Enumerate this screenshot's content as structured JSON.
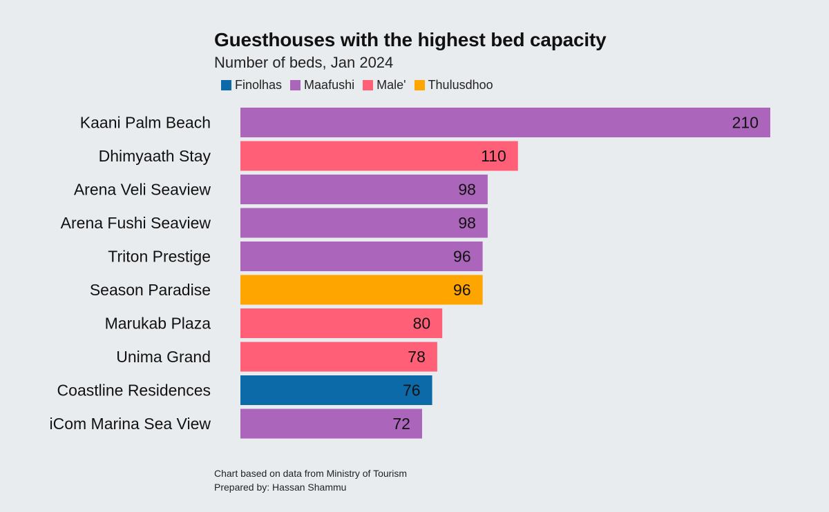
{
  "chart_data": {
    "type": "bar",
    "orientation": "horizontal",
    "title": "Guesthouses with the highest bed capacity",
    "subtitle": "Number of beds, Jan 2024",
    "xlabel": "",
    "ylabel": "",
    "xlim": [
      0,
      210
    ],
    "grid": false,
    "legend_position": "top-left",
    "legend": [
      {
        "name": "Finolhas",
        "color": "#0d6aa8"
      },
      {
        "name": "Maafushi",
        "color": "#ab65ba"
      },
      {
        "name": "Male'",
        "color": "#ff6078"
      },
      {
        "name": "Thulusdhoo",
        "color": "#ffa500"
      }
    ],
    "categories": [
      "Kaani Palm Beach",
      "Dhimyaath Stay",
      "Arena Veli Seaview",
      "Arena Fushi Seaview",
      "Triton Prestige",
      "Season Paradise",
      "Marukab Plaza",
      "Unima Grand",
      "Coastline Residences",
      "iCom Marina Sea View"
    ],
    "values": [
      210,
      110,
      98,
      98,
      96,
      96,
      80,
      78,
      76,
      72
    ],
    "groups": [
      "Maafushi",
      "Male'",
      "Maafushi",
      "Maafushi",
      "Maafushi",
      "Thulusdhoo",
      "Male'",
      "Male'",
      "Finolhas",
      "Maafushi"
    ]
  },
  "footer": {
    "source": "Chart based on data from Ministry of Tourism",
    "credit": "Prepared by: Hassan Shammu"
  }
}
